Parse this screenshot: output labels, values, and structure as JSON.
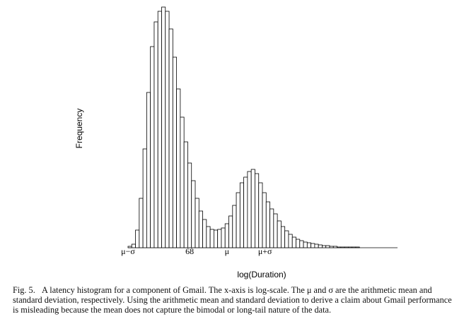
{
  "chart_data": {
    "type": "histogram",
    "ylabel": "Frequency",
    "xlabel": "log(Duration)",
    "bins": [
      0,
      1,
      2,
      3,
      4,
      5,
      6,
      7,
      8,
      9,
      10,
      11,
      12,
      13,
      14,
      15,
      16,
      17,
      18,
      19,
      20,
      21,
      22,
      23,
      24,
      25,
      26,
      27,
      28,
      29,
      30,
      31,
      32,
      33,
      34,
      35,
      36,
      37,
      38,
      39,
      40,
      41,
      42,
      43,
      44,
      45,
      46,
      47,
      48,
      49,
      50,
      51,
      52,
      53,
      54,
      55,
      56,
      57,
      58,
      59,
      60,
      61,
      62,
      63,
      64,
      65,
      66,
      67,
      68,
      69,
      70,
      71,
      72
    ],
    "values": [
      2,
      5,
      25,
      70,
      140,
      220,
      285,
      320,
      335,
      341,
      335,
      310,
      270,
      225,
      185,
      150,
      120,
      95,
      70,
      52,
      40,
      30,
      26,
      25,
      26,
      28,
      34,
      45,
      60,
      78,
      92,
      100,
      108,
      111,
      105,
      92,
      78,
      65,
      55,
      48,
      38,
      30,
      24,
      19,
      15,
      12,
      10,
      8,
      7,
      6,
      5,
      4,
      3,
      3,
      2,
      2,
      1,
      1,
      1,
      1,
      1,
      1,
      0,
      0,
      0,
      0,
      0,
      0,
      0,
      0,
      0,
      0
    ],
    "color": "#ffffff",
    "xlim": [
      0,
      72
    ],
    "ylim": [
      0,
      341
    ],
    "xticks": [
      {
        "value": 0,
        "label": "μ−σ"
      },
      {
        "value": 16.5,
        "label": "68"
      },
      {
        "value": 26.5,
        "label": "μ"
      },
      {
        "value": 36.7,
        "label": "μ+σ"
      }
    ]
  },
  "caption": {
    "label": "Fig. 5.",
    "text": "A latency histogram for a component of Gmail. The x-axis is log-scale. The μ and σ are the arithmetic mean and standard deviation, respectively. Using the arithmetic mean and standard deviation to derive a claim about Gmail performance is misleading because the mean does not capture the bimodal or long-tail nature of the data."
  }
}
